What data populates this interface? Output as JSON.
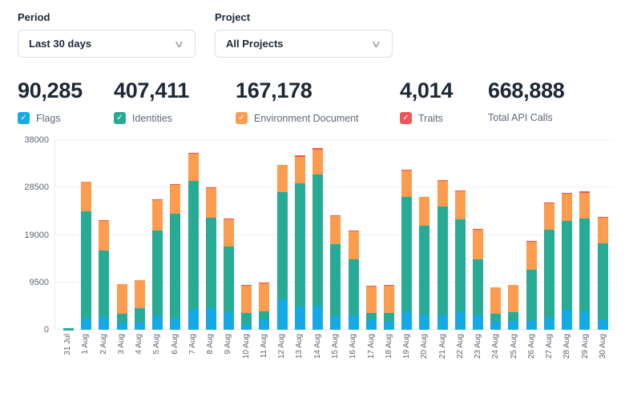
{
  "filters": {
    "period": {
      "label": "Period",
      "value": "Last 30 days"
    },
    "project": {
      "label": "Project",
      "value": "All Projects"
    }
  },
  "stats": [
    {
      "value": "90,285",
      "label": "Flags",
      "checkbox": true,
      "color": "#14aae6",
      "checkmark": "✓"
    },
    {
      "value": "407,411",
      "label": "Identities",
      "checkbox": true,
      "color": "#27ab95",
      "checkmark": "✓"
    },
    {
      "value": "167,178",
      "label": "Environment Document",
      "checkbox": true,
      "color": "#fc9c4f",
      "checkmark": "✓"
    },
    {
      "value": "4,014",
      "label": "Traits",
      "checkbox": true,
      "color": "#f2545b",
      "checkmark": "✓"
    },
    {
      "value": "668,888",
      "label": "Total API Calls",
      "checkbox": false,
      "color": null,
      "checkmark": ""
    }
  ],
  "chart_data": {
    "type": "bar",
    "stacked": true,
    "title": "",
    "xlabel": "",
    "ylabel": "",
    "ylim": [
      0,
      38000
    ],
    "yticks": [
      0,
      9500,
      19000,
      28500,
      38000
    ],
    "grid": true,
    "legend_position": "none",
    "categories": [
      "31 Jul",
      "1 Aug",
      "2 Aug",
      "3 Aug",
      "4 Aug",
      "5 Aug",
      "6 Aug",
      "7 Aug",
      "8 Aug",
      "9 Aug",
      "10 Aug",
      "11 Aug",
      "12 Aug",
      "13 Aug",
      "14 Aug",
      "15 Aug",
      "16 Aug",
      "17 Aug",
      "18 Aug",
      "19 Aug",
      "20 Aug",
      "21 Aug",
      "22 Aug",
      "23 Aug",
      "24 Aug",
      "25 Aug",
      "26 Aug",
      "27 Aug",
      "28 Aug",
      "29 Aug",
      "30 Aug"
    ],
    "series": [
      {
        "name": "Flags",
        "color": "#14aae6",
        "values": [
          50,
          2300,
          2500,
          1500,
          1500,
          2700,
          2200,
          4200,
          4400,
          3600,
          1200,
          2100,
          6100,
          4700,
          4850,
          2800,
          2900,
          1900,
          1550,
          3450,
          3100,
          2950,
          3700,
          2950,
          1600,
          1750,
          1700,
          2400,
          4000,
          3650,
          1850
        ]
      },
      {
        "name": "Identities",
        "color": "#27ab95",
        "values": [
          200,
          21400,
          13300,
          1700,
          2800,
          17200,
          21000,
          25700,
          18100,
          13100,
          2100,
          1550,
          21500,
          24700,
          26300,
          14300,
          11200,
          1500,
          1900,
          23100,
          17800,
          21700,
          18400,
          11200,
          1600,
          1800,
          10300,
          17600,
          17850,
          18650,
          15500
        ]
      },
      {
        "name": "Environment Document",
        "color": "#fc9c4f",
        "values": [
          0,
          5900,
          6000,
          5900,
          5600,
          6100,
          5900,
          5300,
          5900,
          5500,
          5600,
          5700,
          5400,
          5200,
          5000,
          5700,
          5650,
          5300,
          5400,
          5350,
          5650,
          5250,
          5650,
          5900,
          5250,
          5400,
          5650,
          5400,
          5350,
          5150,
          5100
        ]
      },
      {
        "name": "Traits",
        "color": "#f2545b",
        "values": [
          0,
          100,
          100,
          80,
          80,
          100,
          100,
          250,
          150,
          150,
          80,
          80,
          100,
          300,
          250,
          100,
          200,
          80,
          80,
          250,
          100,
          150,
          200,
          100,
          80,
          80,
          200,
          100,
          300,
          300,
          100
        ]
      }
    ]
  }
}
